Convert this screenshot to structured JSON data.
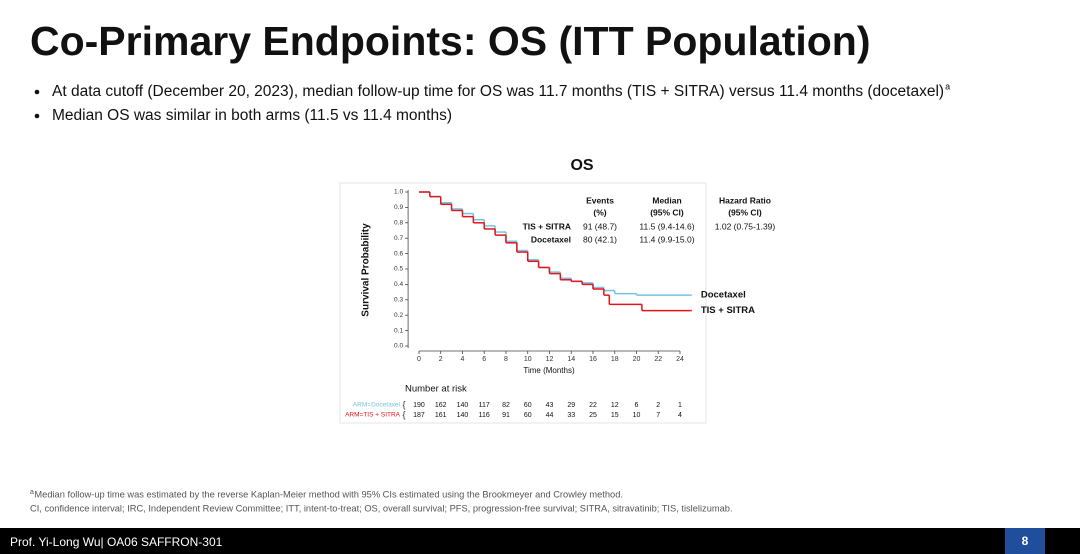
{
  "header": {
    "title": "Co-Primary Endpoints: OS (ITT Population)"
  },
  "bullets": [
    {
      "text": "At data cutoff (December 20, 2023), median follow-up time for OS was 11.7 months (TIS + SITRA) versus 11.4 months (docetaxel)",
      "sup": "a"
    },
    {
      "text": "Median OS was similar in both arms (11.5 vs 11.4 months)"
    }
  ],
  "chart_data": {
    "type": "line",
    "step": true,
    "title": "OS",
    "x_label": "Time (Months)",
    "y_label": "Survival Probability",
    "xlim": [
      -1,
      25.5
    ],
    "ylim": [
      0,
      1
    ],
    "xticks": [
      0,
      2,
      4,
      6,
      8,
      10,
      12,
      14,
      16,
      18,
      20,
      22,
      24
    ],
    "yticks": [
      {
        "value": 0,
        "label": "0.0"
      },
      0.1,
      0.2,
      0.3,
      0.4,
      0.5,
      0.6,
      0.7,
      0.8,
      0.9,
      {
        "value": 1,
        "label": "1.0"
      }
    ],
    "series": [
      {
        "name": "Docetaxel",
        "color": "#74c3e0",
        "x": [
          0,
          1,
          2,
          3,
          4,
          5,
          6,
          7,
          8,
          9,
          10,
          11,
          12,
          13,
          14,
          15,
          16,
          17,
          18,
          20,
          25
        ],
        "values": [
          1.0,
          0.97,
          0.93,
          0.89,
          0.86,
          0.82,
          0.78,
          0.74,
          0.68,
          0.62,
          0.56,
          0.51,
          0.48,
          0.44,
          0.42,
          0.41,
          0.38,
          0.36,
          0.34,
          0.33,
          0.33
        ]
      },
      {
        "name": "TIS + SITRA",
        "color": "#e3141b",
        "x": [
          0,
          1,
          2,
          3,
          4,
          5,
          6,
          7,
          8,
          9,
          10,
          11,
          12,
          13,
          14,
          15,
          16,
          17,
          17.5,
          20.5,
          25
        ],
        "values": [
          1.0,
          0.97,
          0.92,
          0.88,
          0.84,
          0.8,
          0.76,
          0.72,
          0.67,
          0.61,
          0.55,
          0.51,
          0.47,
          0.43,
          0.42,
          0.4,
          0.37,
          0.33,
          0.27,
          0.23,
          0.23
        ]
      }
    ],
    "stats_table": {
      "header": [
        [
          "Events",
          "(%)"
        ],
        [
          "Median",
          "(95% CI)"
        ],
        [
          "Hazard Ratio",
          "(95% CI)"
        ]
      ],
      "rows": [
        [
          "TIS + SITRA",
          "91 (48.7)",
          "11.5 (9.4-14.6)",
          "1.02 (0.75-1.39)"
        ],
        [
          "Docetaxel",
          "80 (42.1)",
          "11.4 (9.9-15.0)"
        ]
      ]
    },
    "risk_table": {
      "title": "Number at risk",
      "rows": [
        {
          "label": "ARM=Docetaxel",
          "color": "#74c3e0",
          "values": [
            190,
            162,
            140,
            117,
            82,
            60,
            43,
            29,
            22,
            12,
            6,
            2,
            1
          ]
        },
        {
          "label": "ARM=TIS + SITRA",
          "color": "#e3141b",
          "values": [
            187,
            161,
            140,
            116,
            91,
            60,
            44,
            33,
            25,
            15,
            10,
            7,
            4
          ]
        }
      ]
    }
  },
  "footnotes": [
    {
      "sup": "a",
      "text": "Median follow-up time was estimated by the reverse Kaplan-Meier method with 95% CIs estimated using the Brookmeyer and Crowley method."
    },
    {
      "text": "CI, confidence interval; IRC, Independent Review Committee; ITT, intent-to-treat; OS, overall survival; PFS, progression-free survival; SITRA, sitravatinib; TIS, tislelizumab."
    }
  ],
  "footer": {
    "presenter": "Prof. Yi-Long Wu| OA06 SAFFRON-301",
    "page": "8"
  }
}
